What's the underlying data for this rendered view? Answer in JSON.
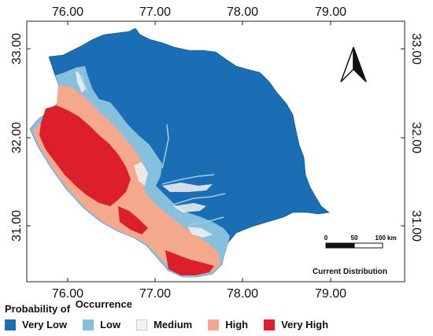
{
  "map": {
    "x_ticks": [
      "76.00",
      "77.00",
      "78.00",
      "79.00"
    ],
    "y_ticks": [
      "33.00",
      "32.00",
      "31.00"
    ],
    "panel_label": "Current Distribution",
    "north_arrow": "north-arrow-icon",
    "scale_bar": {
      "labels": [
        "0",
        "50",
        "100 km"
      ]
    }
  },
  "legend": {
    "title_part1": "Probability of",
    "title_part2": "Occurrence",
    "items": [
      {
        "label": "Very Low",
        "color": "#1a6eb3"
      },
      {
        "label": "Low",
        "color": "#86c0dc"
      },
      {
        "label": "Medium",
        "color": "#f2f2f2"
      },
      {
        "label": "High",
        "color": "#f4a98c"
      },
      {
        "label": "Very High",
        "color": "#dd1f2b"
      }
    ]
  },
  "colors": {
    "very_low": "#1a6eb3",
    "low": "#86c0dc",
    "medium": "#f2f2f2",
    "high": "#f4a98c",
    "very_high": "#dd1f2b",
    "frame": "#222222"
  }
}
